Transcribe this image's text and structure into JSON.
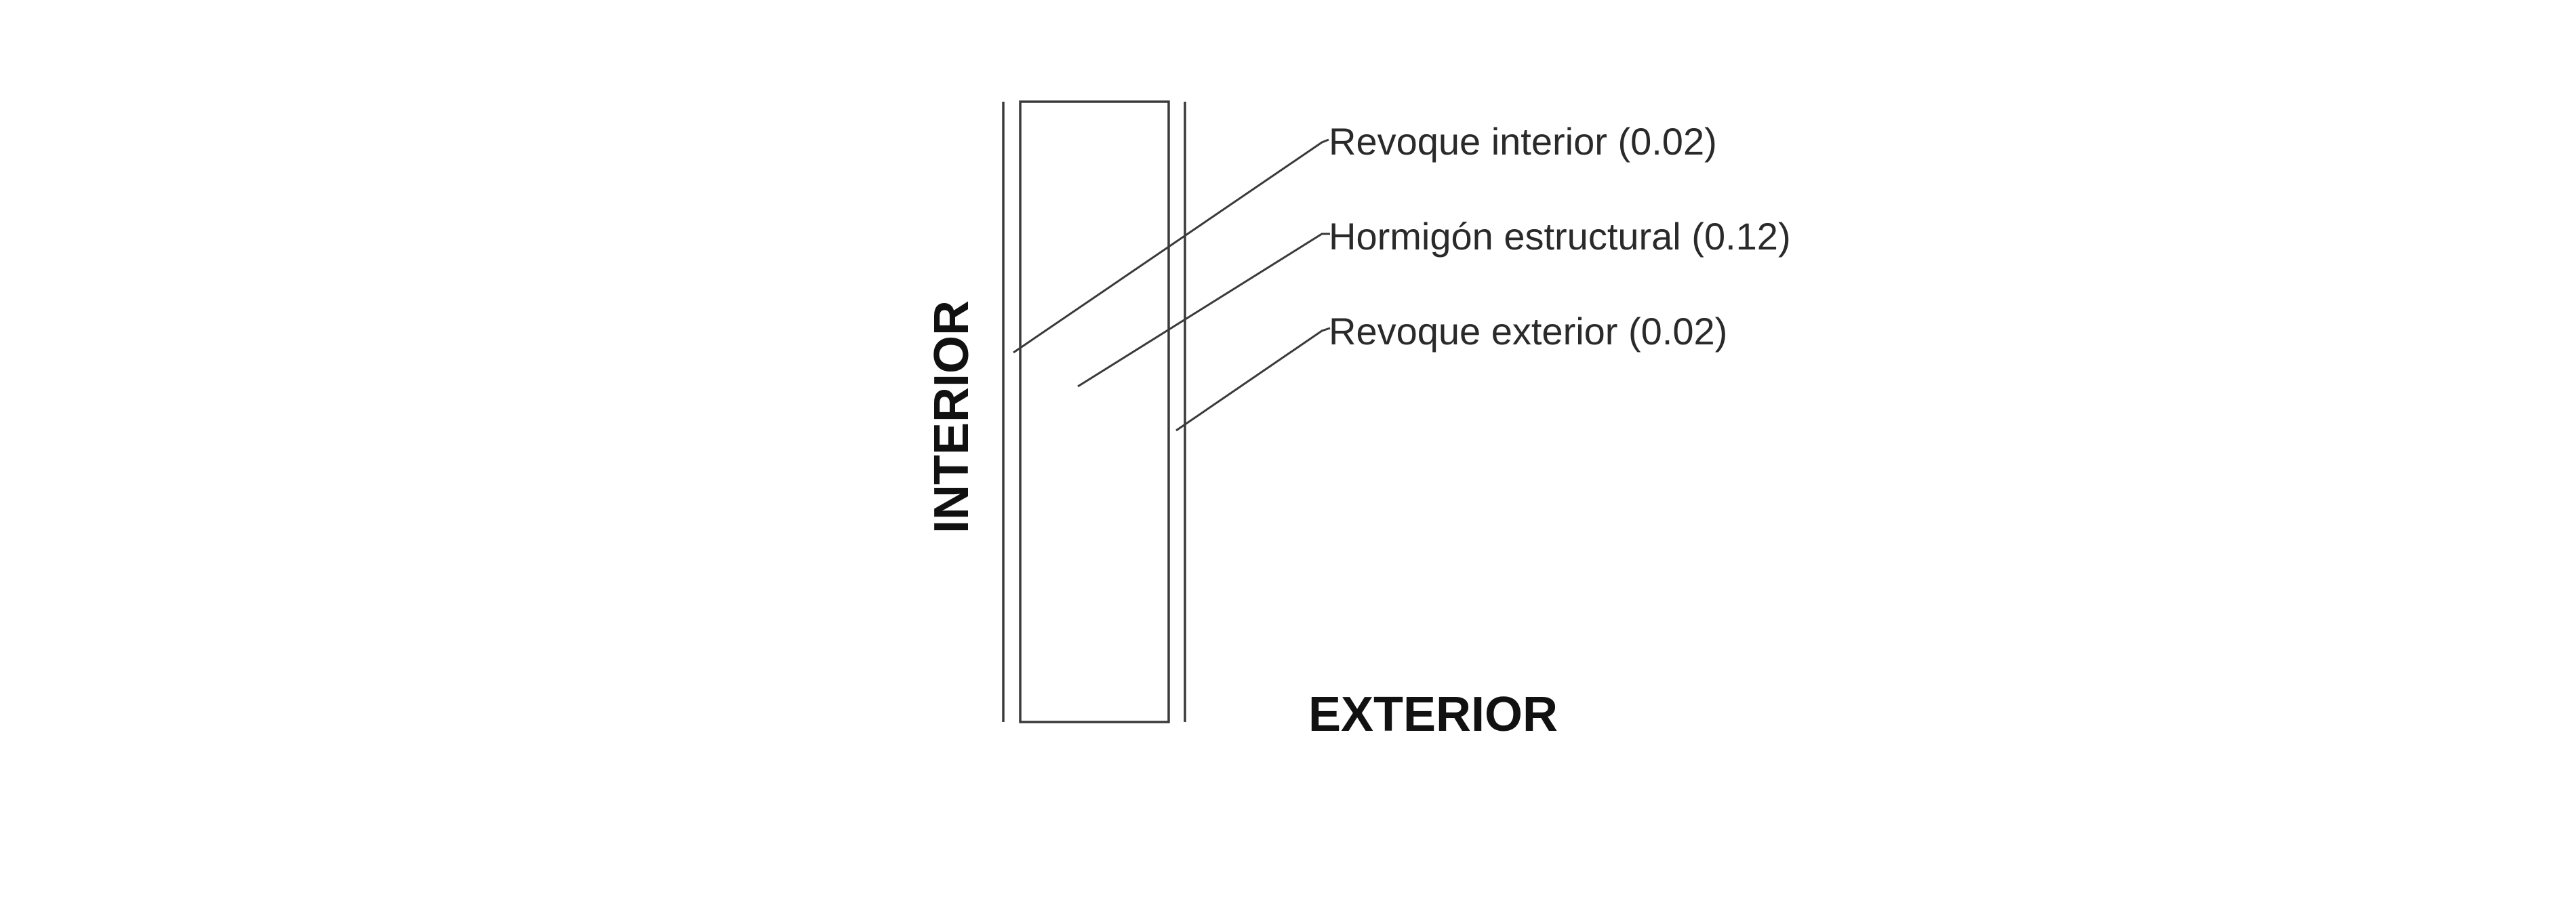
{
  "sides": {
    "interior": "INTERIOR",
    "exterior": "EXTERIOR"
  },
  "layers": [
    {
      "label": "Revoque interior (0.02)"
    },
    {
      "label": "Hormigón estructural (0.12)"
    },
    {
      "label": "Revoque exterior (0.02)"
    }
  ]
}
